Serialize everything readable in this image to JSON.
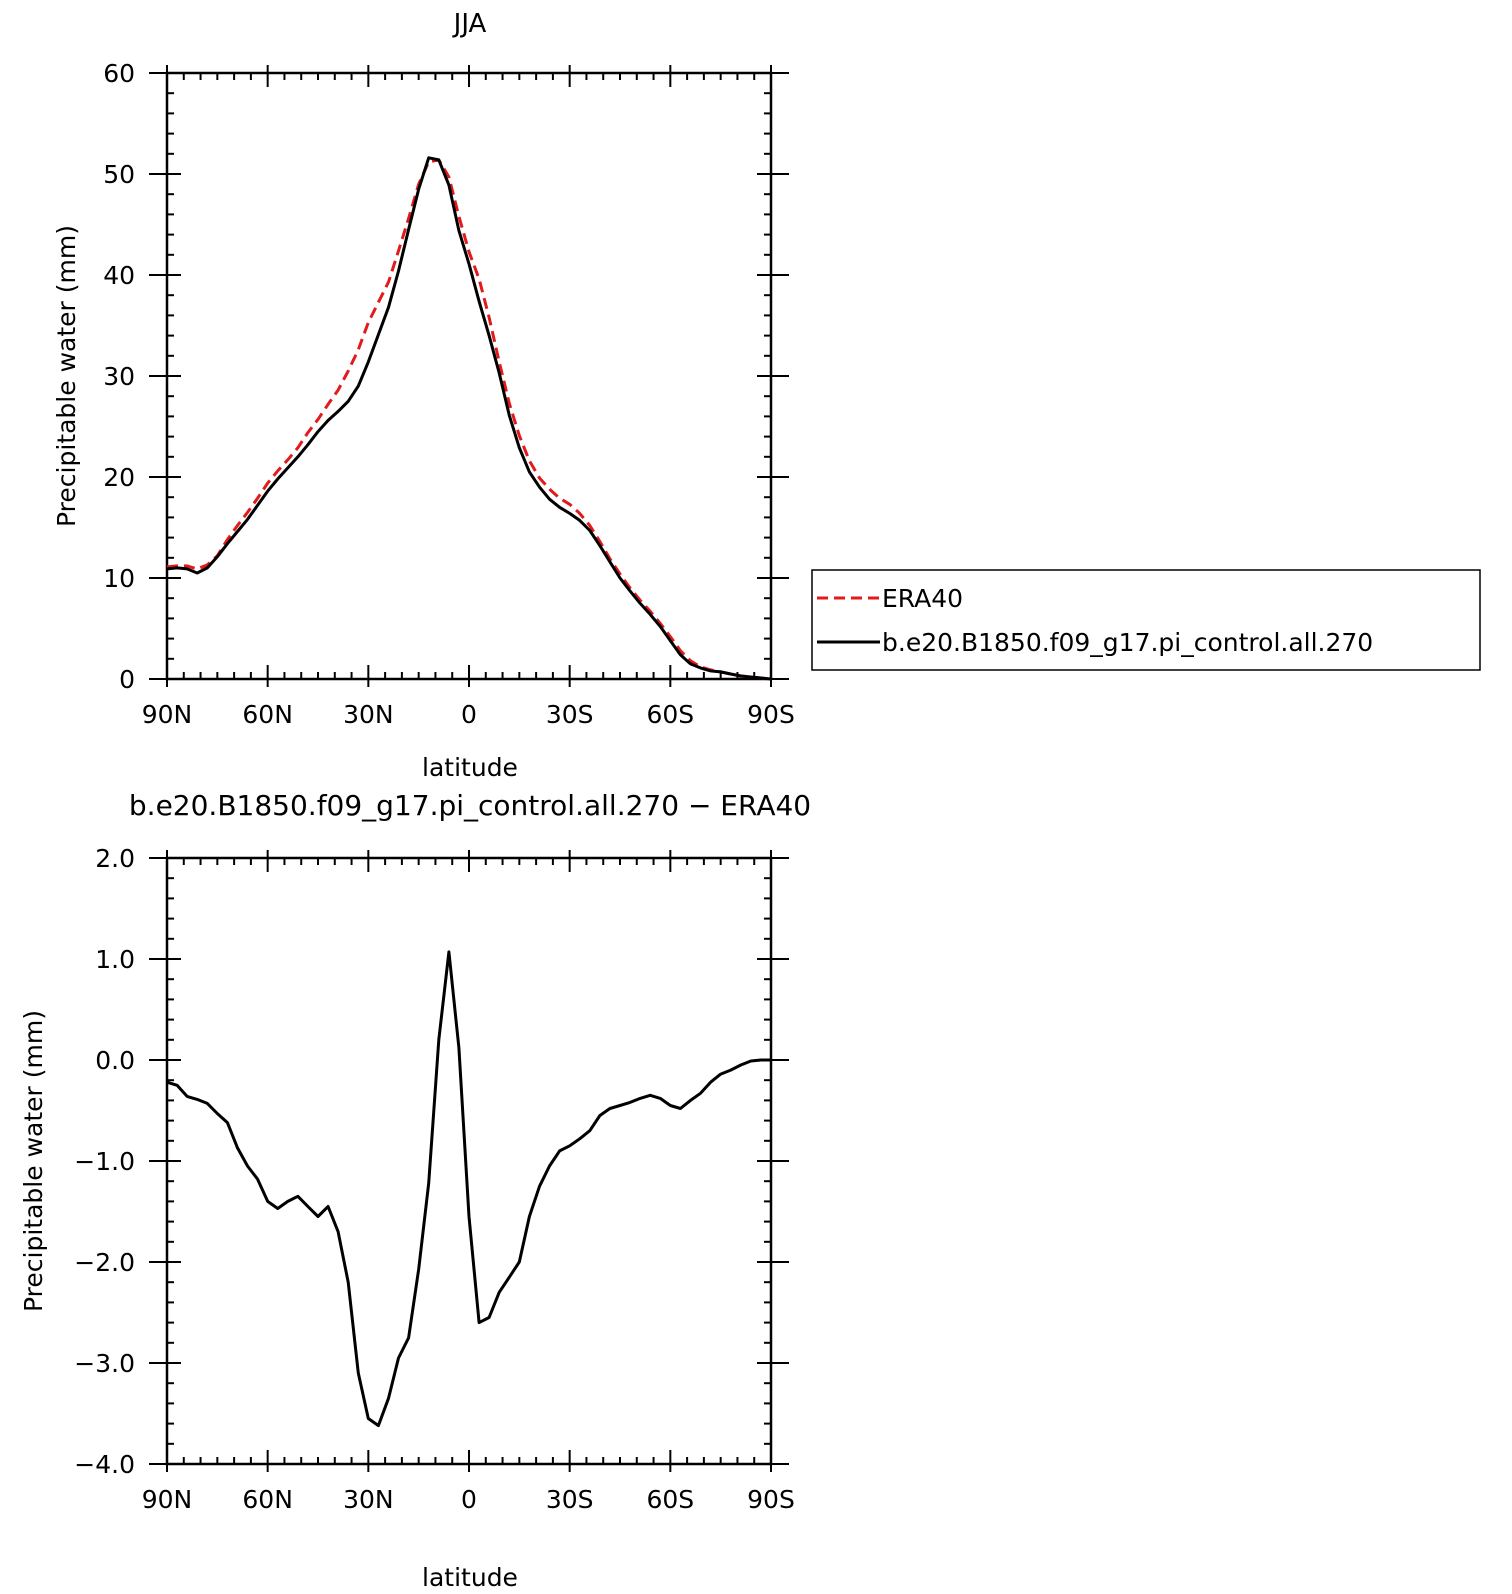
{
  "chart_data": [
    {
      "type": "line",
      "title": "JJA",
      "xlabel": "latitude",
      "ylabel": "Precipitable water (mm)",
      "xlim": [
        90,
        -90
      ],
      "ylim": [
        0,
        60
      ],
      "x_ticks": [
        90,
        60,
        30,
        0,
        -30,
        -60,
        -90
      ],
      "x_tick_labels": [
        "90N",
        "60N",
        "30N",
        "0",
        "30S",
        "60S",
        "90S"
      ],
      "y_ticks": [
        0,
        10,
        20,
        30,
        40,
        50,
        60
      ],
      "y_tick_labels": [
        "0",
        "10",
        "20",
        "30",
        "40",
        "50",
        "60"
      ],
      "grid": false,
      "legend_position": "right",
      "series": [
        {
          "name": "ERA40",
          "color": "#e31a1c",
          "style": "dashed",
          "x": [
            90,
            87,
            84,
            81,
            78,
            75,
            72,
            69,
            66,
            63,
            60,
            57,
            54,
            51,
            48,
            45,
            42,
            39,
            36,
            33,
            30,
            27,
            24,
            21,
            18,
            15,
            12,
            9,
            6,
            3,
            0,
            -3,
            -6,
            -9,
            -12,
            -15,
            -18,
            -21,
            -24,
            -27,
            -30,
            -33,
            -36,
            -39,
            -42,
            -45,
            -48,
            -51,
            -54,
            -57,
            -60,
            -63,
            -66,
            -69,
            -72,
            -75,
            -78,
            -81,
            -84,
            -87,
            -90
          ],
          "y": [
            11.1,
            11.2,
            11.2,
            10.9,
            11.3,
            12.2,
            13.8,
            15.2,
            16.5,
            17.9,
            19.4,
            20.6,
            21.7,
            22.9,
            24.4,
            25.7,
            27.2,
            28.6,
            30.5,
            32.6,
            35.3,
            37.3,
            39.3,
            42.4,
            45.6,
            49.0,
            51.2,
            51.4,
            49.7,
            45.8,
            42.3,
            39.6,
            35.8,
            31.4,
            27.3,
            24.1,
            21.6,
            19.9,
            18.8,
            17.9,
            17.3,
            16.4,
            15.2,
            13.6,
            11.9,
            10.4,
            9.0,
            7.8,
            6.7,
            5.5,
            4.2,
            2.8,
            1.8,
            1.2,
            0.9,
            0.7,
            0.5,
            0.3,
            0.2,
            0.1,
            0.0
          ]
        },
        {
          "name": "b.e20.B1850.f09_g17.pi_control.all.270",
          "color": "#000000",
          "style": "solid",
          "x": [
            90,
            87,
            84,
            81,
            78,
            75,
            72,
            69,
            66,
            63,
            60,
            57,
            54,
            51,
            48,
            45,
            42,
            39,
            36,
            33,
            30,
            27,
            24,
            21,
            18,
            15,
            12,
            9,
            6,
            3,
            0,
            -3,
            -6,
            -9,
            -12,
            -15,
            -18,
            -21,
            -24,
            -27,
            -30,
            -33,
            -36,
            -39,
            -42,
            -45,
            -48,
            -51,
            -54,
            -57,
            -60,
            -63,
            -66,
            -69,
            -72,
            -75,
            -78,
            -81,
            -84,
            -87,
            -90
          ],
          "y": [
            10.9,
            11.0,
            10.9,
            10.5,
            11.0,
            12.1,
            13.4,
            14.6,
            15.8,
            17.2,
            18.6,
            19.8,
            20.9,
            22.0,
            23.2,
            24.5,
            25.6,
            26.5,
            27.5,
            29.0,
            31.4,
            34.1,
            36.8,
            40.4,
            44.5,
            48.5,
            51.6,
            51.4,
            48.9,
            44.4,
            41.1,
            37.4,
            34.0,
            30.3,
            26.1,
            22.9,
            20.5,
            19.0,
            17.8,
            17.0,
            16.4,
            15.7,
            14.7,
            13.2,
            11.6,
            10.0,
            8.7,
            7.5,
            6.4,
            5.2,
            3.8,
            2.4,
            1.5,
            1.1,
            0.8,
            0.7,
            0.5,
            0.3,
            0.2,
            0.1,
            0.0
          ]
        }
      ]
    },
    {
      "type": "line",
      "title": "b.e20.B1850.f09_g17.pi_control.all.270 − ERA40",
      "xlabel": "latitude",
      "ylabel": "Precipitable water (mm)",
      "xlim": [
        90,
        -90
      ],
      "ylim": [
        -4.0,
        2.0
      ],
      "x_ticks": [
        90,
        60,
        30,
        0,
        -30,
        -60,
        -90
      ],
      "x_tick_labels": [
        "90N",
        "60N",
        "30N",
        "0",
        "30S",
        "60S",
        "90S"
      ],
      "y_ticks": [
        2.0,
        1.0,
        0.0,
        -1.0,
        -2.0,
        -3.0,
        -4.0
      ],
      "y_tick_labels": [
        "2.0",
        "1.0",
        "0.0",
        "−1.0",
        "−2.0",
        "−3.0",
        "−4.0"
      ],
      "grid": false,
      "series": [
        {
          "color": "#000000",
          "style": "solid",
          "x": [
            90,
            87,
            84,
            81,
            78,
            75,
            72,
            69,
            66,
            63,
            60,
            57,
            54,
            51,
            48,
            45,
            42,
            39,
            36,
            33,
            30,
            27,
            24,
            21,
            18,
            15,
            12,
            9,
            6,
            3,
            0,
            -3,
            -6,
            -9,
            -12,
            -15,
            -18,
            -21,
            -24,
            -27,
            -30,
            -33,
            -36,
            -39,
            -42,
            -45,
            -48,
            -51,
            -54,
            -57,
            -60,
            -63,
            -66,
            -69,
            -72,
            -75,
            -78,
            -81,
            -84,
            -87,
            -90
          ],
          "y": [
            -0.22,
            -0.25,
            -0.36,
            -0.39,
            -0.43,
            -0.53,
            -0.62,
            -0.87,
            -1.05,
            -1.18,
            -1.4,
            -1.47,
            -1.4,
            -1.35,
            -1.45,
            -1.55,
            -1.45,
            -1.7,
            -2.2,
            -3.1,
            -3.55,
            -3.62,
            -3.35,
            -2.95,
            -2.75,
            -2.07,
            -1.22,
            0.2,
            1.07,
            0.12,
            -1.55,
            -2.6,
            -2.55,
            -2.3,
            -2.15,
            -2.0,
            -1.55,
            -1.25,
            -1.05,
            -0.9,
            -0.85,
            -0.78,
            -0.7,
            -0.55,
            -0.48,
            -0.45,
            -0.42,
            -0.38,
            -0.35,
            -0.38,
            -0.45,
            -0.48,
            -0.4,
            -0.33,
            -0.22,
            -0.14,
            -0.1,
            -0.05,
            -0.01,
            0.0,
            0.0
          ]
        }
      ]
    }
  ]
}
